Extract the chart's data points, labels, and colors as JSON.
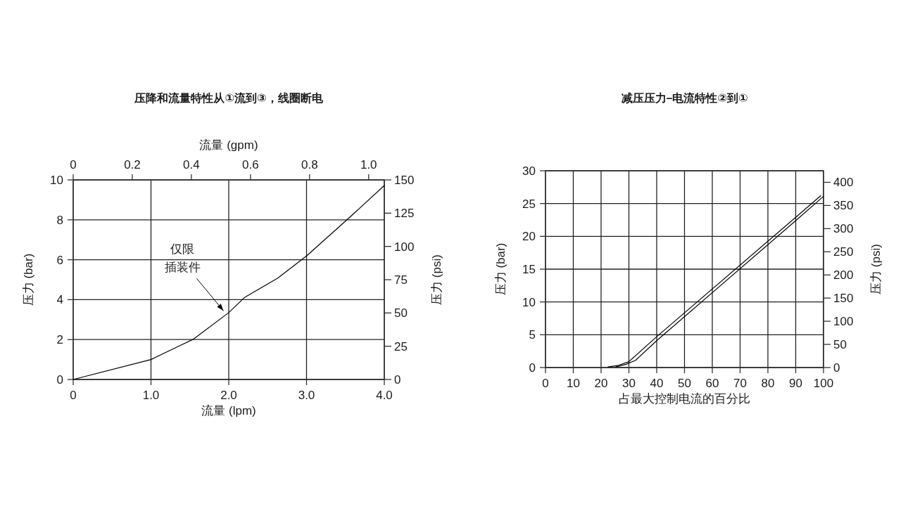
{
  "chart_data": [
    {
      "type": "line",
      "title": "压降和流量特性从①流到③，线圈断电",
      "xlabel": "流量 (lpm)",
      "x2label": "流量 (gpm)",
      "ylabel": "压力 (bar)",
      "y2label": "压力 (psi)",
      "xlim": [
        0,
        4
      ],
      "xticks": [
        0,
        {
          "value": 1,
          "label": "1.0"
        },
        {
          "value": 2,
          "label": "2.0"
        },
        {
          "value": 3,
          "label": "3.0"
        },
        {
          "value": 4,
          "label": "4.0"
        }
      ],
      "x2lim": [
        0,
        1.053
      ],
      "x2ticks": [
        0,
        0.2,
        0.4,
        0.6,
        0.8,
        {
          "value": 1,
          "label": "1.0"
        }
      ],
      "ylim": [
        0,
        10
      ],
      "yticks": [
        0,
        2,
        4,
        6,
        8,
        10
      ],
      "y2lim": [
        0,
        150
      ],
      "y2ticks": [
        0,
        25,
        50,
        75,
        100,
        125,
        150
      ],
      "grid": true,
      "series": [
        {
          "color": "#000000",
          "x": [
            0,
            1.0,
            1.55,
            2.0,
            2.2,
            2.63,
            3.0,
            3.52,
            4.0
          ],
          "values": [
            0,
            1.0,
            2.03,
            3.35,
            4.1,
            5.08,
            6.19,
            8.0,
            9.72
          ]
        }
      ],
      "annotations": [
        {
          "text": "仅限插装件",
          "x": 1.95,
          "y": 3.3
        }
      ]
    },
    {
      "type": "line",
      "title": "减压压力–电流特性②到①",
      "xlabel": "占最大控制电流的百分比",
      "ylabel": "压力 (bar)",
      "y2label": "压力 (psi)",
      "xlim": [
        0,
        100
      ],
      "xticks": [
        0,
        10,
        20,
        30,
        40,
        50,
        60,
        70,
        80,
        90,
        100
      ],
      "ylim": [
        0,
        30
      ],
      "yticks": [
        0,
        5,
        10,
        15,
        20,
        25,
        30
      ],
      "y2lim": [
        0,
        425
      ],
      "y2ticks": [
        0,
        50,
        100,
        150,
        200,
        250,
        300,
        350,
        400
      ],
      "grid": true,
      "series": [
        {
          "color": "#000000",
          "x": [
            22.5,
            26,
            30,
            40,
            90,
            99
          ],
          "values": [
            0.1,
            0.3,
            0.9,
            4.7,
            22.9,
            26.2
          ]
        },
        {
          "color": "#000000",
          "x": [
            25.3,
            29,
            32.4,
            40,
            90,
            100
          ],
          "values": [
            0.1,
            0.5,
            1.1,
            4.1,
            22.4,
            26.1
          ]
        }
      ]
    }
  ]
}
